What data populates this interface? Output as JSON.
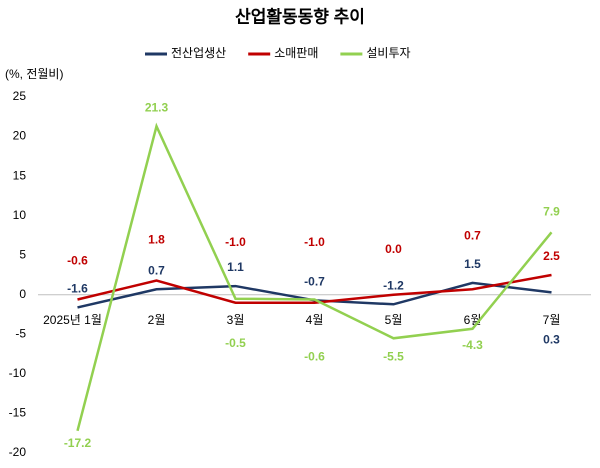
{
  "chart_data": {
    "type": "line",
    "title": "산업활동동향 추이",
    "y_label": "(%, 전월비)",
    "categories": [
      "2025년 1월",
      "2월",
      "3월",
      "4월",
      "5월",
      "6월",
      "7월"
    ],
    "series": [
      {
        "name": "전산업생산",
        "color": "#1f3864",
        "values": [
          -1.6,
          0.7,
          1.1,
          -0.7,
          -1.2,
          1.5,
          0.3
        ],
        "value_labels": [
          "-1.6",
          "0.7",
          "1.1",
          "-0.7",
          "-1.2",
          "1.5",
          "0.3"
        ]
      },
      {
        "name": "소매판매",
        "color": "#c00000",
        "values": [
          -0.6,
          1.8,
          -1.0,
          -1.0,
          0.0,
          0.7,
          2.5
        ],
        "value_labels": [
          "-0.6",
          "1.8",
          "-1.0",
          "-1.0",
          "0.0",
          "0.7",
          "2.5"
        ]
      },
      {
        "name": "설비투자",
        "color": "#92d050",
        "values": [
          -17.2,
          21.3,
          -0.5,
          -0.6,
          -5.5,
          -4.3,
          7.9
        ],
        "value_labels": [
          "-17.2",
          "21.3",
          "-0.5",
          "-0.6",
          "-5.5",
          "-4.3",
          "7.9"
        ]
      }
    ],
    "ylim": [
      -20,
      25
    ],
    "yticks": [
      -20,
      -15,
      -10,
      -5,
      0,
      5,
      10,
      15,
      20,
      25
    ],
    "legend": "top"
  }
}
